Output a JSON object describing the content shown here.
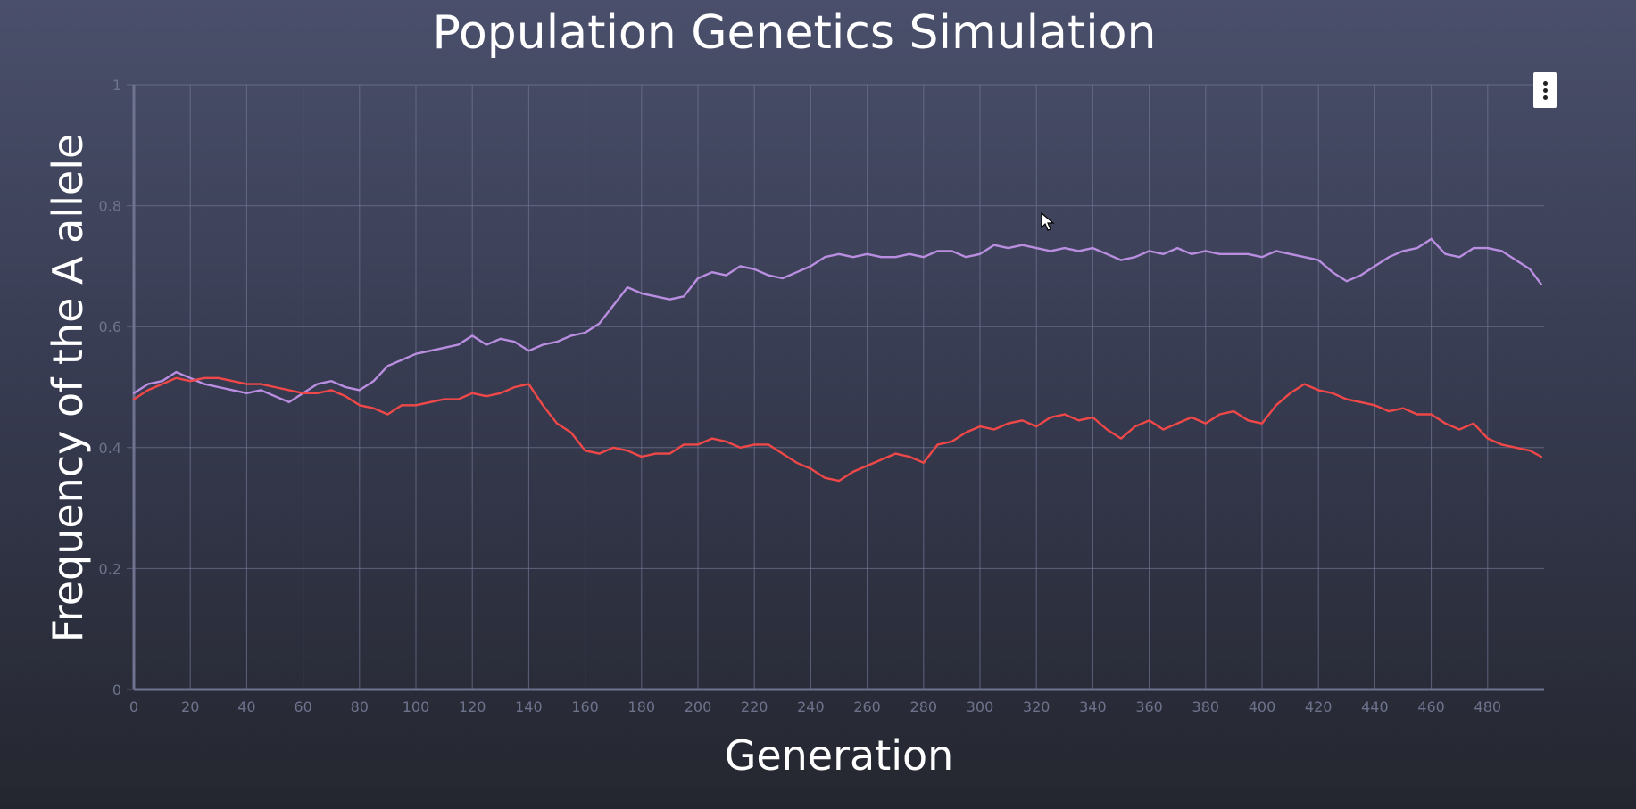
{
  "chart_data": {
    "type": "line",
    "title": "Population Genetics Simulation",
    "xlabel": "Generation",
    "ylabel": "Frequency of the A allele",
    "xlim": [
      0,
      500
    ],
    "ylim": [
      0,
      1
    ],
    "x_ticks": [
      0,
      20,
      40,
      60,
      80,
      100,
      120,
      140,
      160,
      180,
      200,
      220,
      240,
      260,
      280,
      300,
      320,
      340,
      360,
      380,
      400,
      420,
      440,
      460,
      480
    ],
    "y_ticks": [
      0,
      0.2,
      0.4,
      0.6,
      0.8,
      1
    ],
    "grid": true,
    "legend": "none",
    "series": [
      {
        "color": "#b98ee0",
        "x": [
          0,
          5,
          10,
          15,
          20,
          25,
          30,
          35,
          40,
          45,
          50,
          55,
          60,
          65,
          70,
          75,
          80,
          85,
          90,
          95,
          100,
          105,
          110,
          115,
          120,
          125,
          130,
          135,
          140,
          145,
          150,
          155,
          160,
          165,
          170,
          175,
          180,
          185,
          190,
          195,
          200,
          205,
          210,
          215,
          220,
          225,
          230,
          235,
          240,
          245,
          250,
          255,
          260,
          265,
          270,
          275,
          280,
          285,
          290,
          295,
          300,
          305,
          310,
          315,
          320,
          325,
          330,
          335,
          340,
          345,
          350,
          355,
          360,
          365,
          370,
          375,
          380,
          385,
          390,
          395,
          400,
          405,
          410,
          415,
          420,
          425,
          430,
          435,
          440,
          445,
          450,
          455,
          460,
          465,
          470,
          475,
          480,
          485,
          490,
          495,
          499
        ],
        "y": [
          0.49,
          0.505,
          0.51,
          0.525,
          0.515,
          0.505,
          0.5,
          0.495,
          0.49,
          0.495,
          0.485,
          0.475,
          0.49,
          0.505,
          0.51,
          0.5,
          0.495,
          0.51,
          0.535,
          0.545,
          0.555,
          0.56,
          0.565,
          0.57,
          0.585,
          0.57,
          0.58,
          0.575,
          0.56,
          0.57,
          0.575,
          0.585,
          0.59,
          0.605,
          0.635,
          0.665,
          0.655,
          0.65,
          0.645,
          0.65,
          0.68,
          0.69,
          0.685,
          0.7,
          0.695,
          0.685,
          0.68,
          0.69,
          0.7,
          0.715,
          0.72,
          0.715,
          0.72,
          0.715,
          0.715,
          0.72,
          0.715,
          0.725,
          0.725,
          0.715,
          0.72,
          0.735,
          0.73,
          0.735,
          0.73,
          0.725,
          0.73,
          0.725,
          0.73,
          0.72,
          0.71,
          0.715,
          0.725,
          0.72,
          0.73,
          0.72,
          0.725,
          0.72,
          0.72,
          0.72,
          0.715,
          0.725,
          0.72,
          0.715,
          0.71,
          0.69,
          0.675,
          0.685,
          0.7,
          0.715,
          0.725,
          0.73,
          0.745,
          0.72,
          0.715,
          0.73,
          0.73,
          0.725,
          0.71,
          0.695,
          0.67
        ]
      },
      {
        "color": "#f04848",
        "x": [
          0,
          5,
          10,
          15,
          20,
          25,
          30,
          35,
          40,
          45,
          50,
          55,
          60,
          65,
          70,
          75,
          80,
          85,
          90,
          95,
          100,
          105,
          110,
          115,
          120,
          125,
          130,
          135,
          140,
          145,
          150,
          155,
          160,
          165,
          170,
          175,
          180,
          185,
          190,
          195,
          200,
          205,
          210,
          215,
          220,
          225,
          230,
          235,
          240,
          245,
          250,
          255,
          260,
          265,
          270,
          275,
          280,
          285,
          290,
          295,
          300,
          305,
          310,
          315,
          320,
          325,
          330,
          335,
          340,
          345,
          350,
          355,
          360,
          365,
          370,
          375,
          380,
          385,
          390,
          395,
          400,
          405,
          410,
          415,
          420,
          425,
          430,
          435,
          440,
          445,
          450,
          455,
          460,
          465,
          470,
          475,
          480,
          485,
          490,
          495,
          499
        ],
        "y": [
          0.48,
          0.495,
          0.505,
          0.515,
          0.51,
          0.515,
          0.515,
          0.51,
          0.505,
          0.505,
          0.5,
          0.495,
          0.49,
          0.49,
          0.495,
          0.485,
          0.47,
          0.465,
          0.455,
          0.47,
          0.47,
          0.475,
          0.48,
          0.48,
          0.49,
          0.485,
          0.49,
          0.5,
          0.505,
          0.47,
          0.44,
          0.425,
          0.395,
          0.39,
          0.4,
          0.395,
          0.385,
          0.39,
          0.39,
          0.405,
          0.405,
          0.415,
          0.41,
          0.4,
          0.405,
          0.405,
          0.39,
          0.375,
          0.365,
          0.35,
          0.345,
          0.36,
          0.37,
          0.38,
          0.39,
          0.385,
          0.375,
          0.405,
          0.41,
          0.425,
          0.435,
          0.43,
          0.44,
          0.445,
          0.435,
          0.45,
          0.455,
          0.445,
          0.45,
          0.43,
          0.415,
          0.435,
          0.445,
          0.43,
          0.44,
          0.45,
          0.44,
          0.455,
          0.46,
          0.445,
          0.44,
          0.47,
          0.49,
          0.505,
          0.495,
          0.49,
          0.48,
          0.475,
          0.47,
          0.46,
          0.465,
          0.455,
          0.455,
          0.44,
          0.43,
          0.44,
          0.415,
          0.405,
          0.4,
          0.395,
          0.385
        ]
      }
    ]
  },
  "ui": {
    "menu_icon": "more-vert-icon",
    "cursor_icon": "mouse-pointer-icon"
  }
}
